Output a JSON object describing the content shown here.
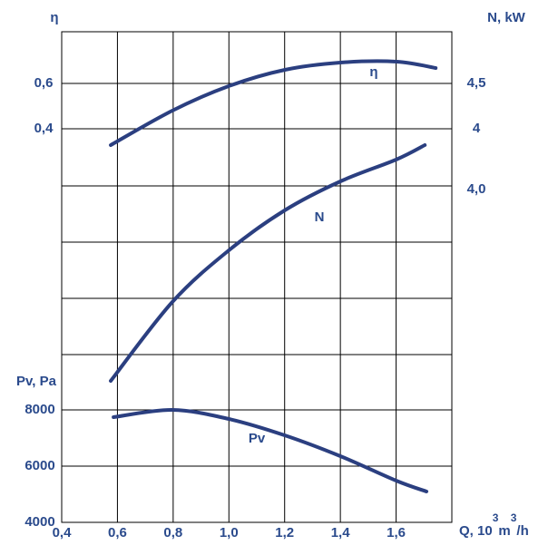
{
  "chart_data": {
    "type": "line",
    "y_label": "η",
    "y2_label": "N, kW",
    "y3_label": "Pv, Pa",
    "x_label": {
      "text": "Q, 10",
      "sup": "3",
      "unit": "m",
      "sup2": "3",
      "tail": "/h"
    },
    "xlim": [
      0.4,
      1.8
    ],
    "xticks": [
      {
        "value": 0.4,
        "label": "0,4"
      },
      {
        "value": 0.6,
        "label": "0,6"
      },
      {
        "value": 0.8,
        "label": "0,8"
      },
      {
        "value": 1.0,
        "label": "1,0"
      },
      {
        "value": 1.2,
        "label": "1,2"
      },
      {
        "value": 1.4,
        "label": "1,4"
      },
      {
        "value": 1.6,
        "label": "1,6"
      }
    ],
    "ylim": [
      -1.336,
      0.828
    ],
    "yticks": [
      {
        "value": 0.4,
        "label": "0,4"
      },
      {
        "value": 0.6,
        "label": "0,6"
      }
    ],
    "y2lim": [
      -0.34,
      5.07
    ],
    "y2ticks": [
      {
        "value": 4,
        "label": "4"
      },
      {
        "value": 4.5,
        "label": "4,5"
      }
    ],
    "y2_extra_label": "4,0",
    "y3lim": [
      4000,
      21450
    ],
    "y3ticks": [
      4000,
      6000,
      8000
    ],
    "color": "#2b3f80",
    "series": [
      {
        "name": "η",
        "axis": "y",
        "x": [
          0.576,
          0.797,
          0.999,
          1.201,
          1.4,
          1.602,
          1.742
        ],
        "values": [
          0.328,
          0.48,
          0.588,
          0.66,
          0.692,
          0.696,
          0.668
        ]
      },
      {
        "name": "N",
        "axis": "y2",
        "x": [
          0.576,
          0.797,
          1.0,
          1.2,
          1.4,
          1.6,
          1.703
        ],
        "values": [
          1.22,
          2.09,
          2.66,
          3.1,
          3.42,
          3.66,
          3.82
        ]
      },
      {
        "name": "Pv",
        "axis": "y3",
        "x": [
          0.586,
          0.797,
          1.0,
          1.2,
          1.4,
          1.6,
          1.709
        ],
        "values": [
          7742,
          8000,
          7677,
          7097,
          6355,
          5484,
          5097
        ]
      }
    ]
  }
}
